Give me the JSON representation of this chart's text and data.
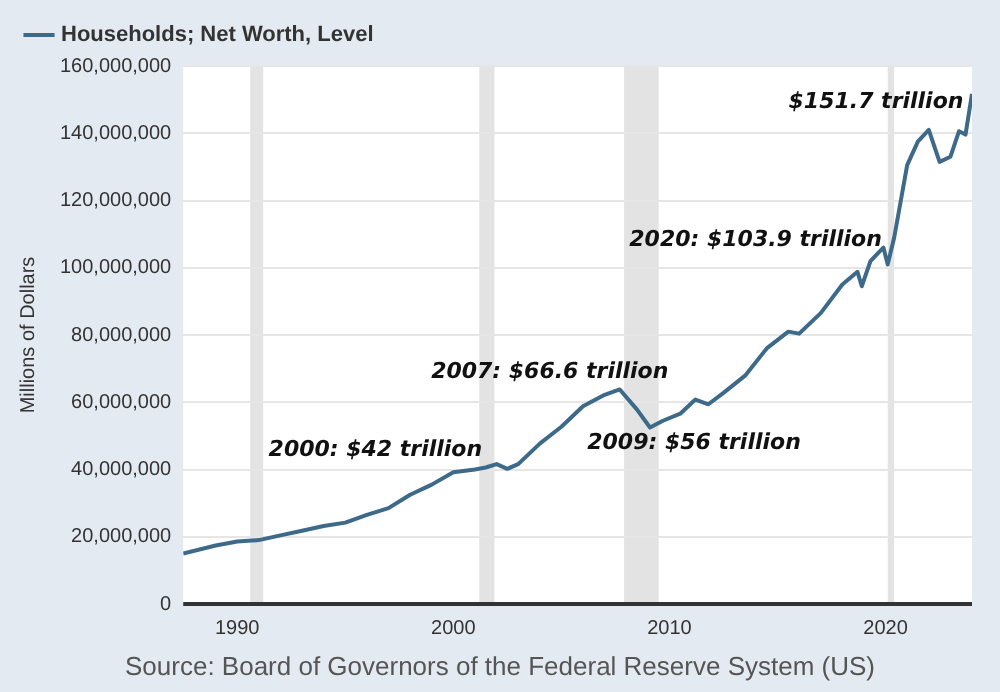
{
  "chart_data": {
    "type": "line",
    "ylabel": "Millions of Dollars",
    "x": [
      1987.5,
      1989,
      1990,
      1991,
      1992,
      1993,
      1994,
      1995,
      1996,
      1997,
      1998,
      1999,
      2000,
      2001,
      2001.5,
      2002,
      2002.5,
      2003,
      2004,
      2005,
      2006,
      2007,
      2007.7,
      2008.5,
      2009.1,
      2009.7,
      2010.5,
      2011.2,
      2011.8,
      2012.5,
      2013.5,
      2014.5,
      2015.5,
      2016,
      2017,
      2018,
      2018.7,
      2018.9,
      2019.3,
      2019.9,
      2020.1,
      2020.4,
      2021,
      2021.5,
      2022,
      2022.5,
      2023,
      2023.4,
      2023.7,
      2024
    ],
    "series": [
      {
        "name": "Households; Net Worth, Level",
        "color": "#3e6a8a",
        "values": [
          15000000,
          17400000,
          18600000,
          19000000,
          20400000,
          21800000,
          23200000,
          24200000,
          26500000,
          28500000,
          32500000,
          35500000,
          39200000,
          40000000,
          40600000,
          41600000,
          40200000,
          41600000,
          47700000,
          52700000,
          58800000,
          62200000,
          63800000,
          57800000,
          52500000,
          54500000,
          56600000,
          60800000,
          59400000,
          62800000,
          67900000,
          76000000,
          81000000,
          80400000,
          86500000,
          95000000,
          98800000,
          94500000,
          102000000,
          106000000,
          101000000,
          109000000,
          130500000,
          137600000,
          141000000,
          131500000,
          133000000,
          140600000,
          139600000,
          151700000
        ]
      }
    ],
    "xlim": [
      1987.5,
      2024
    ],
    "xticks": [
      1990,
      2000,
      2010,
      2020
    ],
    "ylim": [
      0,
      160000000
    ],
    "yticks": [
      0,
      {
        "value": 20000000,
        "label": "20,000,000"
      },
      {
        "value": 40000000,
        "label": "40,000,000"
      },
      {
        "value": 60000000,
        "label": "60,000,000"
      },
      {
        "value": 80000000,
        "label": "80,000,000"
      },
      {
        "value": 100000000,
        "label": "100,000,000"
      },
      {
        "value": 120000000,
        "label": "120,000,000"
      },
      {
        "value": 140000000,
        "label": "140,000,000"
      },
      {
        "value": 160000000,
        "label": "160,000,000"
      }
    ],
    "bands": [
      {
        "axis": "x",
        "from": 1990.6,
        "to": 1991.2,
        "color": "#e3e3e3"
      },
      {
        "axis": "x",
        "from": 2001.2,
        "to": 2001.9,
        "color": "#e3e3e3"
      },
      {
        "axis": "x",
        "from": 2007.9,
        "to": 2009.5,
        "color": "#e3e3e3"
      },
      {
        "axis": "x",
        "from": 2020.1,
        "to": 2020.4,
        "color": "#e3e3e3"
      }
    ],
    "annotations": [
      {
        "text": "2000: $42 trillion",
        "x": 2000,
        "y": 42000000
      },
      {
        "text": "2007: $66.6 trillion",
        "x": 2007.7,
        "y": 66600000
      },
      {
        "text": "2009: $56 trillion",
        "x": 2009.1,
        "y": 56000000
      },
      {
        "text": "2020: $103.9 trillion",
        "x": 2020,
        "y": 103900000
      },
      {
        "text": "$151.7 trillion",
        "x": 2024,
        "y": 151700000
      },
      "Source: Board of Governors of the Federal Reserve System (US)"
    ],
    "grid": "y",
    "legend": "top left",
    "marker": "none",
    "line_style": "solid"
  }
}
